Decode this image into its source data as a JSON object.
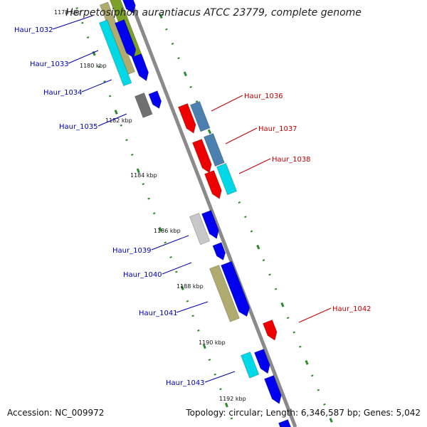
{
  "title": "Herpetosiphon aurantiacus ATCC 23779, complete genome",
  "accession": "Accession: NC_009972",
  "summary": "Topology: circular; Length: 6,346,587 bp; Genes: 5,042",
  "colors": {
    "backbone": "#8a8a8a",
    "ticks": "#2a8a2a",
    "left_label": "#0000b0",
    "right_label": "#c00000",
    "blue": "#0000ee",
    "red": "#ee0000",
    "steel": "#4a7fb0",
    "cyan": "#00d8e8",
    "grey": "#707070",
    "light_grey": "#c8c8c8",
    "olive": "#b0ac70",
    "green": "#7aa028"
  },
  "kbp_labels": [
    "1178 kbp",
    "1180 kbp",
    "1182 kbp",
    "1184 kbp",
    "1186 kbp",
    "1188 kbp",
    "1190 kbp",
    "1192 kbp"
  ],
  "gene_labels_left": [
    "Haur_1032",
    "Haur_1033",
    "Haur_1034",
    "Haur_1035",
    "Haur_1039",
    "Haur_1040",
    "Haur_1041",
    "Haur_1043"
  ],
  "gene_labels_right": [
    "Haur_1036",
    "Haur_1037",
    "Haur_1038",
    "Haur_1042"
  ]
}
